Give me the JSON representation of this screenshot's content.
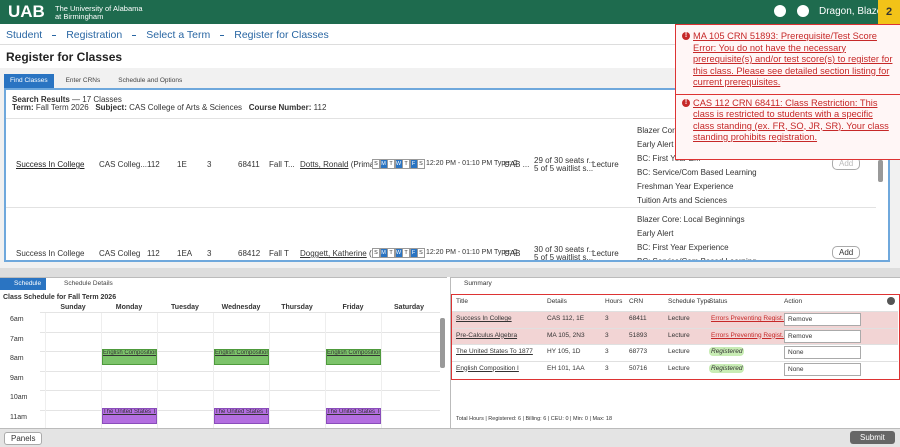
{
  "header": {
    "logo": "UAB",
    "university": "The University of Alabama at Birmingham",
    "user": "Dragon, Blaze",
    "notification_count": "2"
  },
  "breadcrumb": [
    "Student",
    "Registration",
    "Select a Term",
    "Register for Classes"
  ],
  "page_title": "Register for Classes",
  "tabs": [
    "Find Classes",
    "Enter CRNs",
    "Schedule and Options"
  ],
  "search": {
    "heading": "Search Results",
    "count": "— 17 Classes",
    "term_label": "Term:",
    "term": "Fall Term 2026",
    "subject_label": "Subject:",
    "subject": "CAS College of Arts & Sciences",
    "course_label": "Course Number:",
    "course": "112"
  },
  "results": [
    {
      "title": "Success In College",
      "subject": "CAS Colleg...",
      "course": "112",
      "section": "1E",
      "hours": "3",
      "crn": "68411",
      "term": "Fall T...",
      "instructor": "Dotts, Ronald",
      "instructor_role": "(Primary)",
      "days": [
        {
          "label": "S",
          "active": false
        },
        {
          "label": "M",
          "active": true
        },
        {
          "label": "T",
          "active": false
        },
        {
          "label": "W",
          "active": true
        },
        {
          "label": "T",
          "active": false
        },
        {
          "label": "F",
          "active": true
        },
        {
          "label": "S",
          "active": false
        }
      ],
      "meeting": "12:20 PM - 01:10 PM Type: C",
      "campus": "UAB ...",
      "seats": "29 of 30 seats r...",
      "waitlist": "5 of 5 waitlist s...",
      "schedule_type": "Lecture",
      "attributes": [
        "Blazer Core: L...",
        "Early Alert",
        "BC: First Year E...",
        "BC: Service/Com Based Learning",
        "Freshman Year Experience",
        "Tuition Arts and Sciences"
      ],
      "action": "Add"
    },
    {
      "title": "Success In College",
      "subject": "CAS Colleg",
      "course": "112",
      "section": "1EA",
      "hours": "3",
      "crn": "68412",
      "term": "Fall T",
      "instructor": "Doggett, Katherine",
      "instructor_role": "(P",
      "days": [
        {
          "label": "S",
          "active": false
        },
        {
          "label": "M",
          "active": true
        },
        {
          "label": "T",
          "active": false
        },
        {
          "label": "W",
          "active": true
        },
        {
          "label": "T",
          "active": false
        },
        {
          "label": "F",
          "active": true
        },
        {
          "label": "S",
          "active": false
        }
      ],
      "meeting": "12:20 PM - 01:10 PM Type: C",
      "campus": "UAB",
      "seats": "30 of 30 seats r...",
      "waitlist": "5 of 5 waitlist s...",
      "schedule_type": "Lecture",
      "attributes": [
        "Blazer Core: Local Beginnings",
        "Early Alert",
        "BC: First Year Experience",
        "BC: Service/Com Based Learning"
      ],
      "action": "Add"
    }
  ],
  "errors": [
    "MA 105 CRN 51893: Prerequisite/Test Score Error: You do not have the necessary prerequisite(s) and/or test score(s) to register for this class. Please see detailed section listing for current prerequisites.",
    "CAS 112 CRN 68411: Class Restriction: This class is restricted to students with a specific class standing (ex. FR, SO, JR, SR). Your class standing prohibits registration."
  ],
  "schedule": {
    "tabs": [
      "Schedule",
      "Schedule Details"
    ],
    "title": "Class Schedule for Fall Term 2026",
    "days": [
      "Sunday",
      "Monday",
      "Tuesday",
      "Wednesday",
      "Thursday",
      "Friday",
      "Saturday"
    ],
    "times": [
      "6am",
      "7am",
      "8am",
      "9am",
      "10am",
      "11am"
    ],
    "events": [
      {
        "label": "English Composition I",
        "day": "Monday",
        "time": "8am"
      },
      {
        "label": "English Composition I",
        "day": "Wednesday",
        "time": "8am"
      },
      {
        "label": "English Composition I",
        "day": "Friday",
        "time": "8am"
      },
      {
        "label": "The United States To 1877",
        "day": "Monday",
        "time": "11am"
      },
      {
        "label": "The United States To 1877",
        "day": "Wednesday",
        "time": "11am"
      },
      {
        "label": "The United States To 1877",
        "day": "Friday",
        "time": "11am"
      }
    ]
  },
  "summary": {
    "title": "Summary",
    "columns": [
      "Title",
      "Details",
      "Hours",
      "CRN",
      "Schedule Type",
      "Status",
      "Action"
    ],
    "rows": [
      {
        "title": "Success In College",
        "details": "CAS 112, 1E",
        "hours": "3",
        "crn": "68411",
        "type": "Lecture",
        "status": "Errors Preventing Regist...",
        "action": "Remove",
        "error": true
      },
      {
        "title": "Pre-Calculus Algebra",
        "details": "MA 105, 2N3",
        "hours": "3",
        "crn": "51893",
        "type": "Lecture",
        "status": "Errors Preventing Regist...",
        "action": "Remove",
        "error": true
      },
      {
        "title": "The United States To 1877",
        "details": "HY 105, 1D",
        "hours": "3",
        "crn": "68773",
        "type": "Lecture",
        "status": "Registered",
        "action": "None",
        "error": false
      },
      {
        "title": "English Composition I",
        "details": "EH 101, 1AA",
        "hours": "3",
        "crn": "50716",
        "type": "Lecture",
        "status": "Registered",
        "action": "None",
        "error": false
      }
    ],
    "totals": "Total Hours | Registered: 6 | Billing: 6 | CEU: 0 | Min: 0 | Max: 18"
  },
  "footer": {
    "panels": "Panels",
    "submit": "Submit"
  }
}
